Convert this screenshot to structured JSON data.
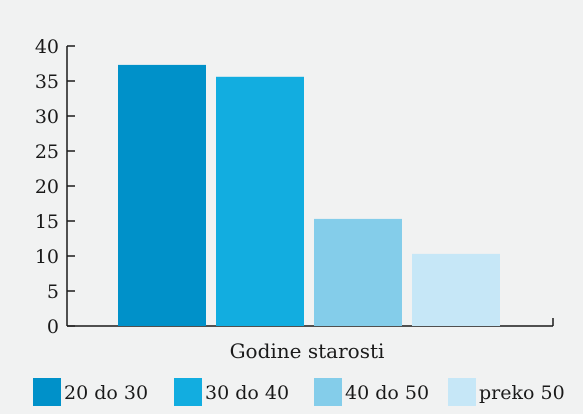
{
  "chart_data": {
    "type": "bar",
    "title": "",
    "xlabel": "Godine starosti",
    "ylabel": "",
    "ylim": [
      0,
      40
    ],
    "yticks": [
      0,
      5,
      10,
      15,
      20,
      25,
      30,
      35,
      40
    ],
    "categories": [
      "20 do 30",
      "30 do 40",
      "40 do 50",
      "preko 50"
    ],
    "values": [
      37.3,
      35.6,
      15.3,
      10.3
    ],
    "colors": [
      "#0091c9",
      "#12ade0",
      "#84cdea",
      "#c6e7f7"
    ],
    "grid": false,
    "legend_position": "bottom"
  }
}
